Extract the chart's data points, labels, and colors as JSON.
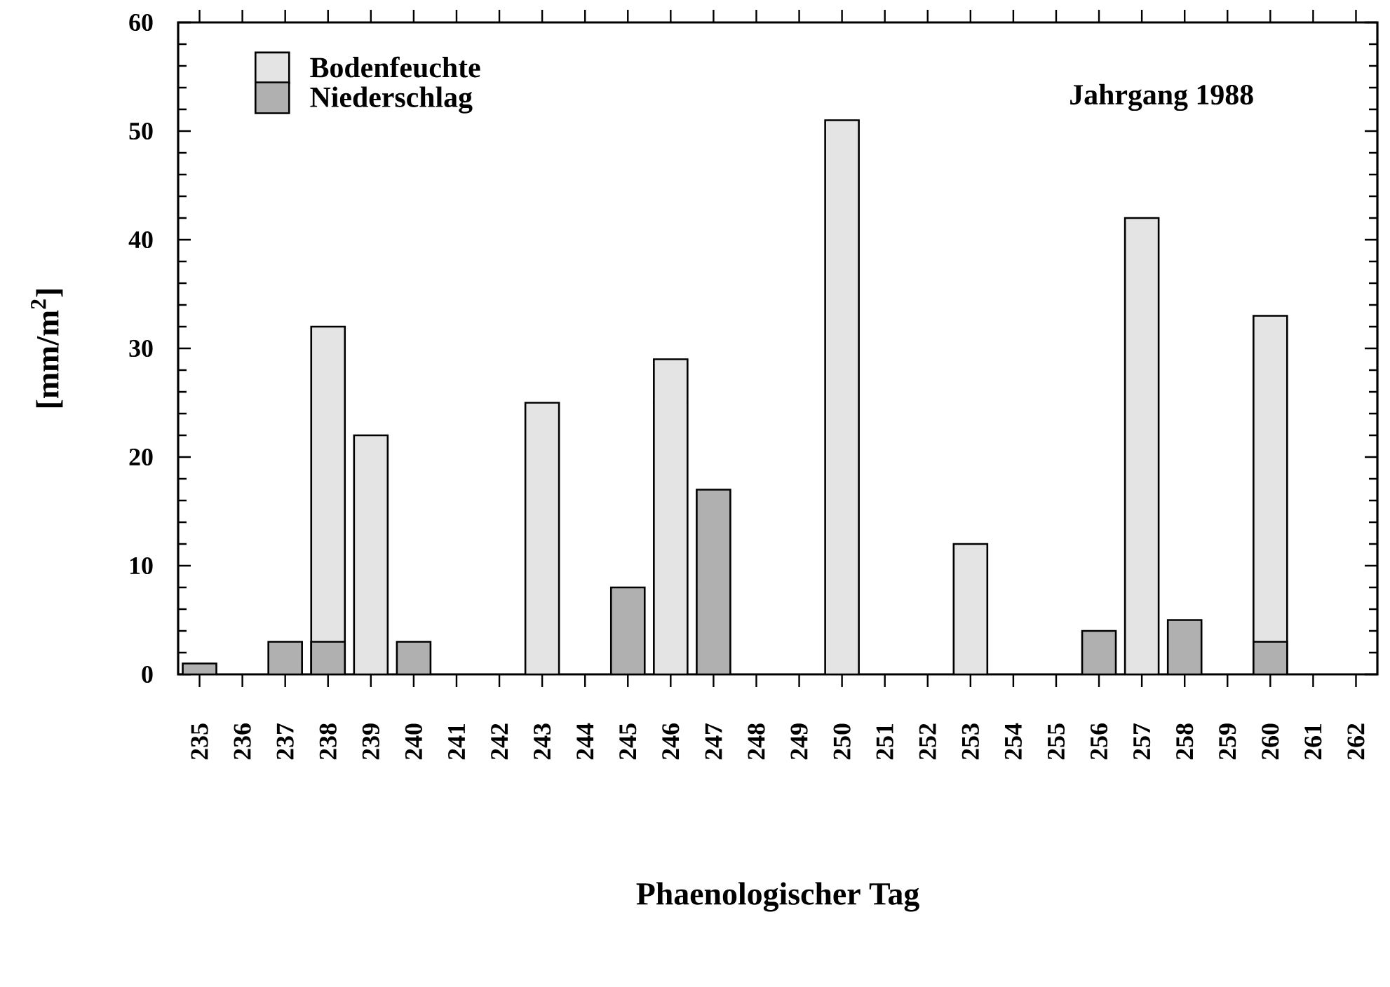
{
  "chart_data": {
    "type": "bar",
    "xlabel": "Phaenologischer Tag",
    "ylabel": "[mm/m$^{2}$]",
    "annotations": [
      "Jahrgang 1988"
    ],
    "categories": [
      "235",
      "236",
      "237",
      "238",
      "239",
      "240",
      "241",
      "242",
      "243",
      "244",
      "245",
      "246",
      "247",
      "248",
      "249",
      "250",
      "251",
      "252",
      "253",
      "254",
      "255",
      "256",
      "257",
      "258",
      "259",
      "260",
      "261",
      "262"
    ],
    "series": [
      {
        "name": "Bodenfeuchte",
        "color": "#e4e4e4",
        "values": [
          null,
          null,
          null,
          32,
          22,
          null,
          null,
          null,
          25,
          null,
          null,
          29,
          null,
          null,
          null,
          51,
          null,
          null,
          12,
          null,
          null,
          null,
          42,
          null,
          null,
          33,
          null,
          null
        ]
      },
      {
        "name": "Niederschlag",
        "color": "#b0b0b0",
        "values": [
          1,
          null,
          3,
          3,
          null,
          3,
          null,
          null,
          null,
          null,
          8,
          null,
          17,
          null,
          null,
          null,
          null,
          null,
          null,
          null,
          null,
          4,
          null,
          5,
          null,
          3,
          null,
          null
        ]
      }
    ],
    "ylim": [
      0,
      60
    ],
    "yticks": [
      0,
      10,
      20,
      30,
      40,
      50,
      60
    ],
    "grid": false,
    "legend": "top left"
  }
}
